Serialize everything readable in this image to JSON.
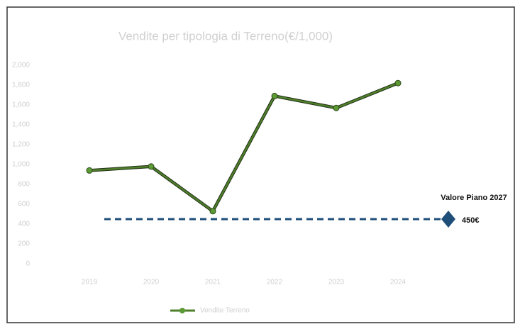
{
  "chart_data": {
    "type": "line",
    "title": "Vendite per tipologia di Terreno(€/1,000)",
    "categories": [
      "2019",
      "2020",
      "2021",
      "2022",
      "2023",
      "2024"
    ],
    "series": [
      {
        "name": "Vendite Terreno",
        "color": "#4e7f2a",
        "values": [
          940,
          980,
          530,
          1690,
          1570,
          1820
        ]
      }
    ],
    "ylim": [
      0,
      2000
    ],
    "yticks": [
      0,
      200,
      400,
      600,
      800,
      {
        "value": 1000,
        "label": "1,000"
      },
      {
        "value": 1200,
        "label": "1,200"
      },
      {
        "value": 1400,
        "label": "1,400"
      },
      {
        "value": 1600,
        "label": "1,600"
      },
      {
        "value": 1800,
        "label": "1,800"
      },
      {
        "value": 2000,
        "label": "2,000"
      }
    ],
    "grid": false,
    "reference_line": {
      "name": "Valore Piano 2027",
      "value": 450,
      "value_label": "450€",
      "color": "#1f4e79"
    }
  }
}
